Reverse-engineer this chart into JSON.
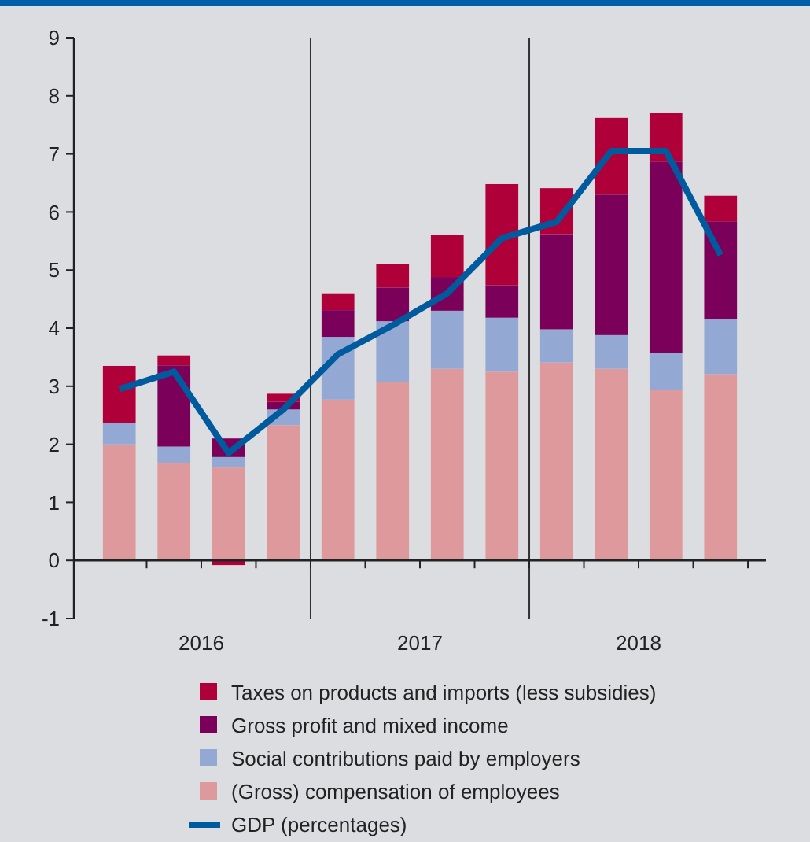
{
  "chart_data": {
    "type": "bar",
    "stacked": true,
    "categories": [
      null,
      null,
      null,
      null,
      null,
      null,
      null,
      null,
      null,
      null,
      null,
      null
    ],
    "series": [
      {
        "name": "(Gross) compensation of employees",
        "color": "#dd999b",
        "values": [
          2.0,
          1.67,
          1.6,
          2.33,
          2.77,
          3.07,
          3.3,
          3.25,
          3.41,
          3.3,
          2.93,
          3.21
        ]
      },
      {
        "name": "Social contributions paid by employers",
        "color": "#94a8d4",
        "values": [
          0.37,
          0.29,
          0.18,
          0.27,
          1.08,
          1.05,
          1.0,
          0.93,
          0.57,
          0.58,
          0.64,
          0.95
        ]
      },
      {
        "name": "Gross profit and mixed income",
        "color": "#7a0059",
        "values": [
          null,
          1.4,
          0.32,
          0.13,
          0.46,
          0.58,
          0.58,
          0.56,
          1.64,
          2.42,
          3.3,
          1.68
        ]
      },
      {
        "name": "Taxes on products and imports (less subsidies)",
        "color": "#b0003a",
        "values": [
          0.98,
          0.17,
          -0.08,
          0.14,
          0.29,
          0.4,
          0.72,
          1.74,
          0.79,
          1.32,
          0.83,
          0.44
        ]
      },
      {
        "name": "GDP (percentages)",
        "type": "line",
        "color": "#005a9e",
        "values": [
          2.95,
          3.25,
          1.85,
          2.6,
          3.55,
          4.05,
          4.6,
          5.55,
          5.83,
          7.05,
          7.05,
          5.26
        ]
      }
    ],
    "annotations": [
      "2016",
      "2017",
      "2018"
    ],
    "ylim": [
      -1,
      9
    ],
    "yticks": [
      -1,
      0,
      1,
      2,
      3,
      4,
      5,
      6,
      7,
      8,
      9
    ],
    "grid": false,
    "legend": "bottom",
    "marker": "none"
  }
}
